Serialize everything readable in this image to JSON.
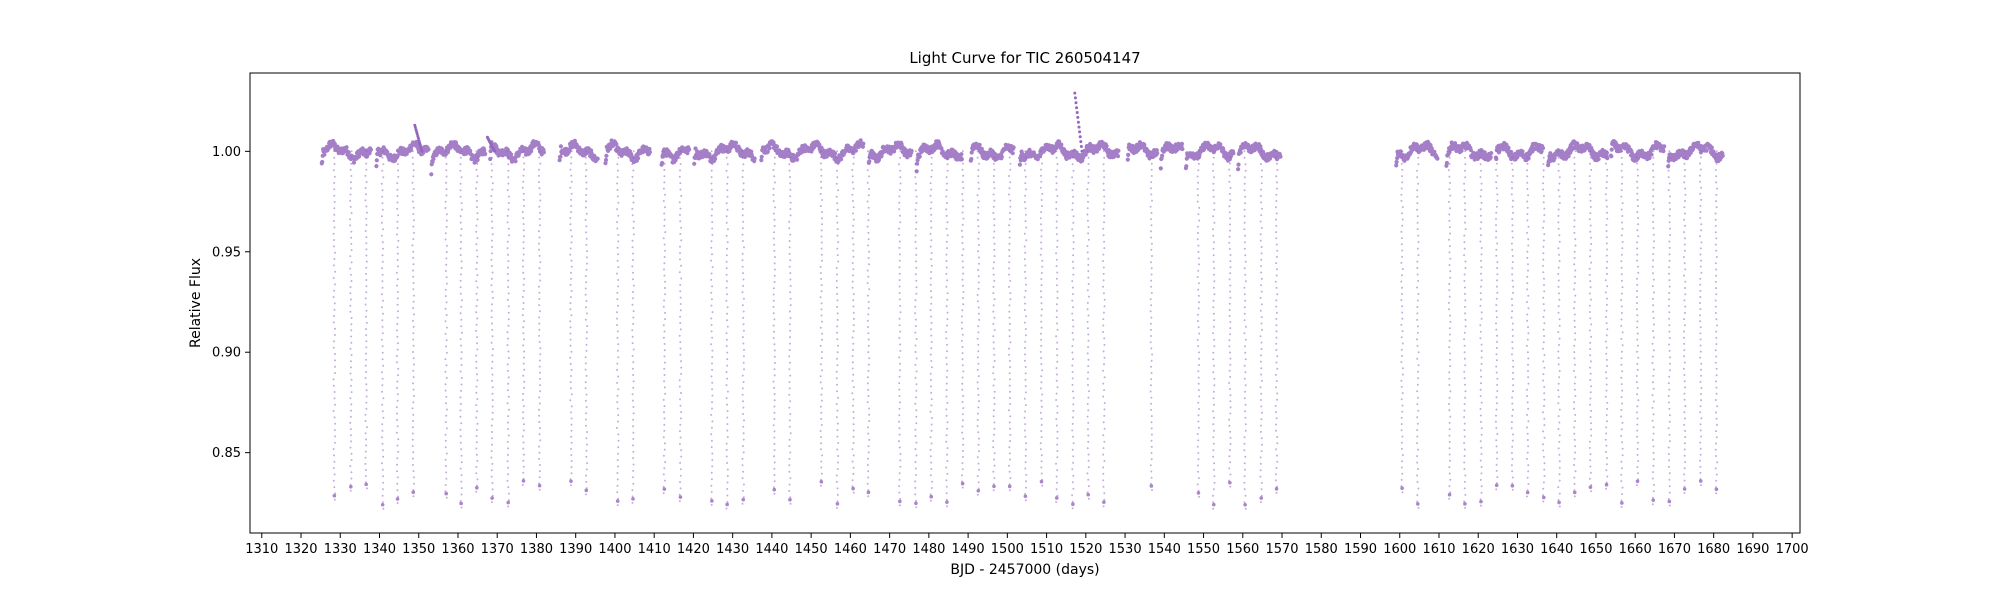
{
  "chart_data": {
    "type": "scatter",
    "title": "Light Curve for TIC 260504147",
    "xlabel": "BJD - 2457000 (days)",
    "ylabel": "Relative Flux",
    "xlim": [
      1307,
      1702
    ],
    "ylim": [
      0.81,
      1.039
    ],
    "xticks": [
      1310,
      1320,
      1330,
      1340,
      1350,
      1360,
      1370,
      1380,
      1390,
      1400,
      1410,
      1420,
      1430,
      1440,
      1450,
      1460,
      1470,
      1480,
      1490,
      1500,
      1510,
      1520,
      1530,
      1540,
      1550,
      1560,
      1570,
      1580,
      1590,
      1600,
      1610,
      1620,
      1630,
      1640,
      1650,
      1660,
      1670,
      1680,
      1690,
      1700
    ],
    "yticks": [
      0.85,
      0.9,
      0.95,
      1.0
    ],
    "ytick_labels": [
      "0.85",
      "0.90",
      "0.95",
      "1.00"
    ],
    "grid": false,
    "marker_color": "#9467bd",
    "segments": [
      [
        1325.3,
        1337.8
      ],
      [
        1339.2,
        1352.5
      ],
      [
        1353.2,
        1366.9
      ],
      [
        1368.2,
        1381.9
      ],
      [
        1385.9,
        1395.6
      ],
      [
        1397.6,
        1408.9
      ],
      [
        1411.9,
        1418.9
      ],
      [
        1420.2,
        1435.6
      ],
      [
        1437.3,
        1463.3
      ],
      [
        1464.7,
        1475.6
      ],
      [
        1476.9,
        1488.4
      ],
      [
        1490.7,
        1501.6
      ],
      [
        1503.2,
        1528.3
      ],
      [
        1530.7,
        1538.2
      ],
      [
        1539.1,
        1544.6
      ],
      [
        1545.5,
        1557.6
      ],
      [
        1558.8,
        1569.6
      ],
      [
        1599.1,
        1609.6
      ],
      [
        1611.9,
        1623.3
      ],
      [
        1624.5,
        1636.5
      ],
      [
        1637.8,
        1652.9
      ],
      [
        1653.8,
        1667.4
      ],
      [
        1668.4,
        1682.3
      ]
    ],
    "transits": [
      1328.5,
      1332.7,
      1336.6,
      1340.8,
      1344.6,
      1348.6,
      1357.0,
      1360.8,
      1364.8,
      1368.7,
      1372.8,
      1376.7,
      1380.8,
      1388.8,
      1392.7,
      1400.7,
      1404.6,
      1412.6,
      1416.7,
      1424.7,
      1428.6,
      1432.7,
      1440.6,
      1444.6,
      1452.6,
      1456.7,
      1460.7,
      1464.6,
      1472.6,
      1476.7,
      1480.6,
      1484.6,
      1488.6,
      1492.6,
      1496.6,
      1500.6,
      1504.6,
      1508.7,
      1512.6,
      1516.7,
      1520.6,
      1524.6,
      1536.7,
      1548.7,
      1552.6,
      1556.7,
      1560.6,
      1564.7,
      1568.6,
      1600.6,
      1604.6,
      1612.7,
      1616.6,
      1620.7,
      1624.7,
      1628.7,
      1632.6,
      1636.7,
      1640.6,
      1644.6,
      1648.6,
      1652.7,
      1656.6,
      1660.6,
      1664.6,
      1668.7,
      1672.6,
      1676.7,
      1680.7
    ],
    "transit_depth_min": 0.822,
    "baseline": 1.0
  }
}
